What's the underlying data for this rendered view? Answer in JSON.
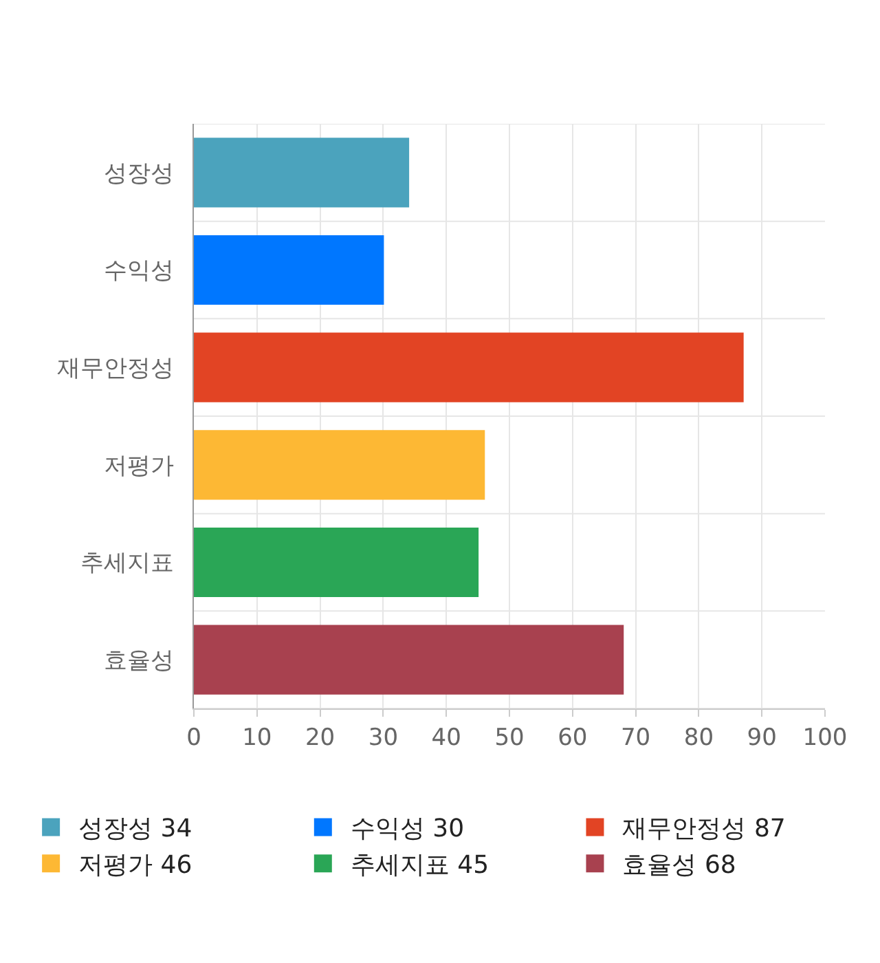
{
  "chart_data": {
    "type": "bar",
    "orientation": "horizontal",
    "categories": [
      "성장성",
      "수익성",
      "재무안정성",
      "저평가",
      "추세지표",
      "효율성"
    ],
    "series": [
      {
        "name": "성장성 34",
        "color": "#4ba3bd",
        "values": [
          34,
          null,
          null,
          null,
          null,
          null
        ]
      },
      {
        "name": "수익성 30",
        "color": "#0077ff",
        "values": [
          null,
          30,
          null,
          null,
          null,
          null
        ]
      },
      {
        "name": "재무안정성 87",
        "color": "#e24424",
        "values": [
          null,
          null,
          87,
          null,
          null,
          null
        ]
      },
      {
        "name": "저평가 46",
        "color": "#fdb834",
        "values": [
          null,
          null,
          null,
          46,
          null,
          null
        ]
      },
      {
        "name": "추세지표 45",
        "color": "#2aa656",
        "values": [
          null,
          null,
          null,
          null,
          45,
          null
        ]
      },
      {
        "name": "효율성 68",
        "color": "#a8414f",
        "values": [
          null,
          null,
          null,
          null,
          null,
          68
        ]
      }
    ],
    "xlim": [
      0,
      100
    ],
    "xticks": [
      0,
      10,
      20,
      30,
      40,
      50,
      60,
      70,
      80,
      90,
      100
    ],
    "grid": true,
    "legend": "bottom"
  }
}
